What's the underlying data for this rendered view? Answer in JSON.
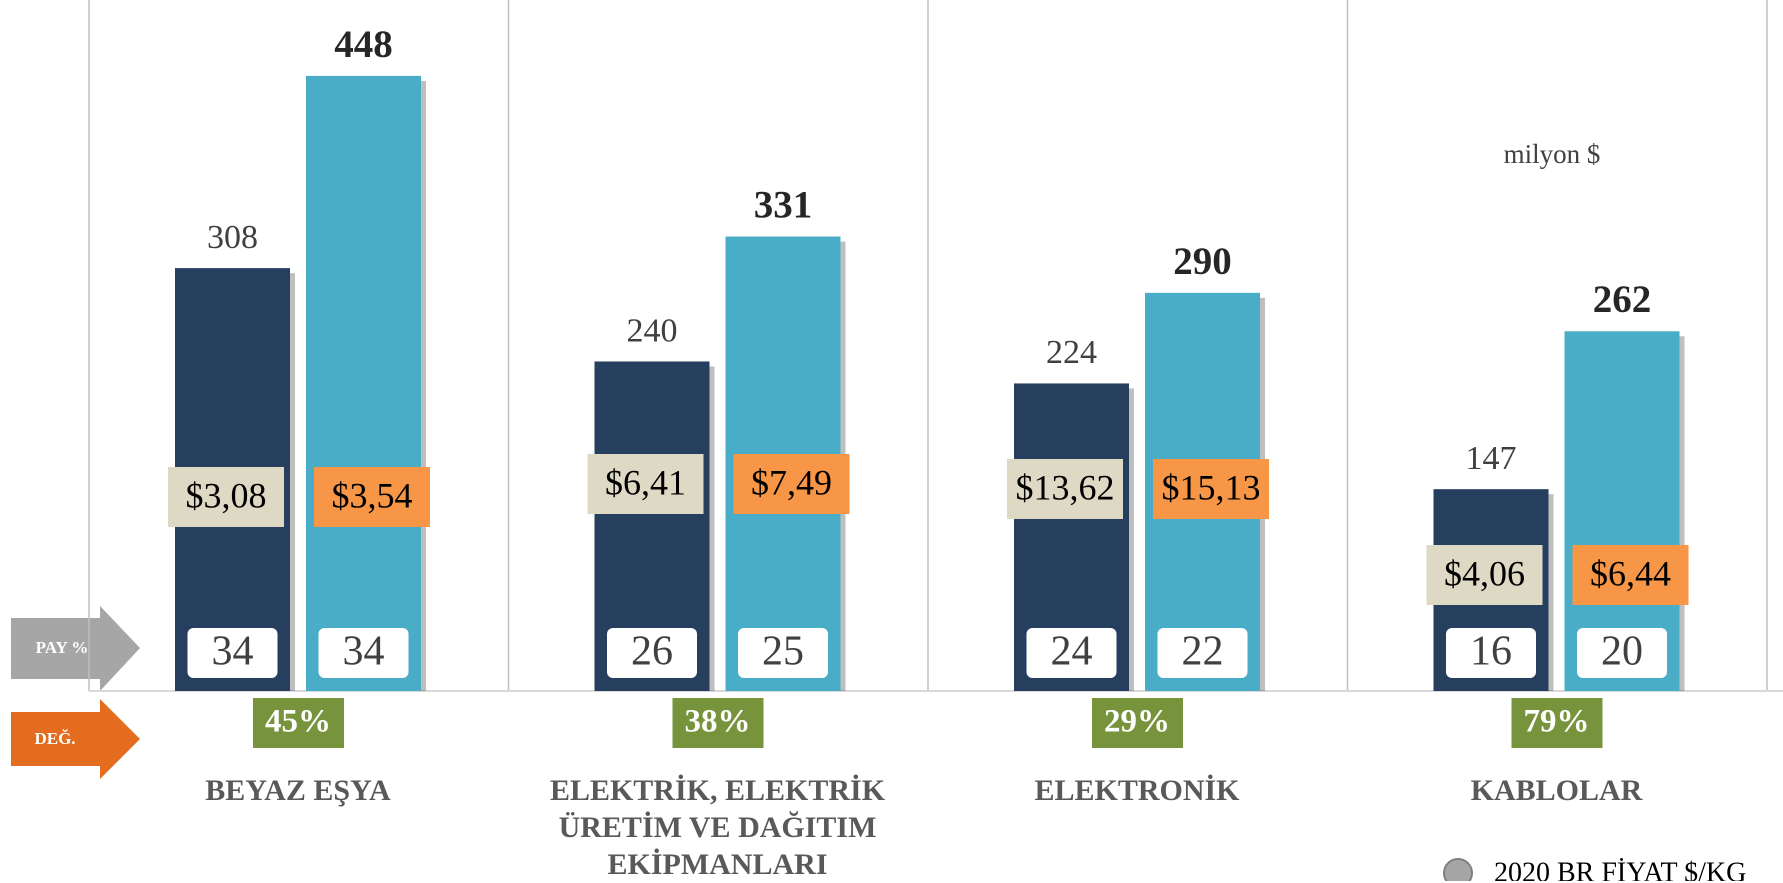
{
  "chart_data": {
    "type": "bar",
    "categories": [
      "BEYAZ EŞYA",
      "ELEKTRİK, ELEKTRİK ÜRETİM VE DAĞITIM EKİPMANLARI",
      "ELEKTRONİK",
      "KABLOLAR"
    ],
    "series": [
      {
        "color": "#263f5f",
        "values": [
          308,
          240,
          224,
          147
        ],
        "prices": [
          3.08,
          6.41,
          13.62,
          4.06
        ],
        "price_labels": [
          "$3,08",
          "$6,41",
          "$13,62",
          "$4,06"
        ],
        "price_color": "#ddd9c4",
        "shares": [
          34,
          26,
          24,
          16
        ]
      },
      {
        "color": "#4aadc7",
        "values": [
          448,
          331,
          290,
          262
        ],
        "prices": [
          3.54,
          7.49,
          15.13,
          6.44
        ],
        "price_labels": [
          "$3,54",
          "$7,49",
          "$15,13",
          "$6,44"
        ],
        "price_color": "#f79646",
        "shares": [
          34,
          25,
          22,
          20
        ]
      }
    ],
    "changes": [
      45,
      38,
      29,
      79
    ],
    "change_labels": [
      "45%",
      "38%",
      "29%",
      "79%"
    ],
    "change_color": "#77933c",
    "share_label": "PAY %",
    "change_label": "DEĞ.",
    "unit_label": "milyon $",
    "legend": {
      "label": "2020 BR FİYAT $/KG",
      "color": "#a6a6a6"
    }
  }
}
